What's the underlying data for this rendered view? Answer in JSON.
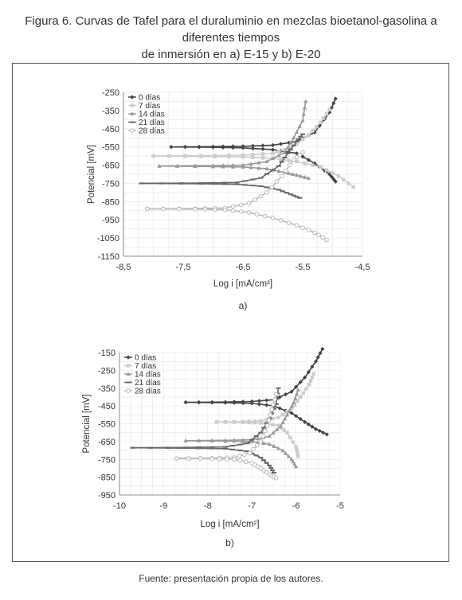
{
  "figure": {
    "title_line1": "Figura 6. Curvas de Tafel para el duraluminio en mezclas bioetanol-gasolina a diferentes tiempos",
    "title_line2": "de inmersión en a) E-15 y b) E-20",
    "source": "Fuente: presentación propia de los autores."
  },
  "chart_data": [
    {
      "type": "line",
      "label": "a)",
      "xlabel": "Log i [mA/cm²]",
      "ylabel": "Potencial [mV]",
      "xlim": [
        -8.5,
        -4.5
      ],
      "ylim": [
        -1150,
        -250
      ],
      "xticks": [
        "-8,5",
        "-7,5",
        "-6,5",
        "-5,5",
        "-4,5"
      ],
      "yticks": [
        "-250",
        "-350",
        "-450",
        "-550",
        "-650",
        "-750",
        "-850",
        "-950",
        "-1050",
        "-1150"
      ],
      "grid": true,
      "legend_position": "top-left",
      "series": [
        {
          "name": "0 días",
          "color": "#444444",
          "marker": "diamond",
          "points": [
            [
              -7.7,
              -550
            ],
            [
              -7.0,
              -548
            ],
            [
              -6.5,
              -546
            ],
            [
              -6.0,
              -540
            ],
            [
              -5.6,
              -520
            ],
            [
              -5.3,
              -470
            ],
            [
              -5.05,
              -360
            ],
            [
              -4.95,
              -285
            ]
          ],
          "cathodic": [
            [
              -7.7,
              -550
            ],
            [
              -7.0,
              -552
            ],
            [
              -6.5,
              -555
            ],
            [
              -6.0,
              -565
            ],
            [
              -5.6,
              -585
            ],
            [
              -5.3,
              -640
            ],
            [
              -5.05,
              -700
            ],
            [
              -4.95,
              -740
            ]
          ]
        },
        {
          "name": "7 días",
          "color": "#cccccc",
          "marker": "square",
          "points": [
            [
              -8.0,
              -600
            ],
            [
              -7.2,
              -598
            ],
            [
              -6.5,
              -595
            ],
            [
              -6.0,
              -585
            ],
            [
              -5.7,
              -555
            ],
            [
              -5.4,
              -485
            ],
            [
              -5.2,
              -415
            ],
            [
              -5.05,
              -345
            ]
          ],
          "cathodic": [
            [
              -8.0,
              -600
            ],
            [
              -7.2,
              -602
            ],
            [
              -6.5,
              -605
            ],
            [
              -6.0,
              -612
            ],
            [
              -5.6,
              -630
            ],
            [
              -5.2,
              -660
            ],
            [
              -4.9,
              -710
            ],
            [
              -4.65,
              -770
            ]
          ]
        },
        {
          "name": "14 días",
          "color": "#999999",
          "marker": "triangle",
          "points": [
            [
              -7.9,
              -655
            ],
            [
              -7.0,
              -652
            ],
            [
              -6.5,
              -650
            ],
            [
              -6.1,
              -630
            ],
            [
              -5.8,
              -580
            ],
            [
              -5.65,
              -500
            ],
            [
              -5.5,
              -405
            ],
            [
              -5.45,
              -300
            ]
          ],
          "cathodic": [
            [
              -7.9,
              -655
            ],
            [
              -7.0,
              -658
            ],
            [
              -6.5,
              -660
            ],
            [
              -6.1,
              -670
            ],
            [
              -5.8,
              -690
            ],
            [
              -5.6,
              -705
            ],
            [
              -5.4,
              -722
            ]
          ]
        },
        {
          "name": "21 días",
          "color": "#666666",
          "marker": "dash",
          "points": [
            [
              -8.2,
              -750
            ],
            [
              -7.2,
              -748
            ],
            [
              -6.6,
              -745
            ],
            [
              -6.2,
              -720
            ],
            [
              -5.9,
              -655
            ],
            [
              -5.75,
              -585
            ],
            [
              -5.6,
              -520
            ],
            [
              -5.5,
              -480
            ]
          ],
          "cathodic": [
            [
              -8.2,
              -750
            ],
            [
              -7.2,
              -752
            ],
            [
              -6.6,
              -755
            ],
            [
              -6.2,
              -765
            ],
            [
              -5.9,
              -785
            ],
            [
              -5.7,
              -810
            ],
            [
              -5.55,
              -830
            ]
          ]
        },
        {
          "name": "28 días",
          "color": "#bbbbbb",
          "marker": "circle",
          "points": [
            [
              -8.1,
              -890
            ],
            [
              -7.3,
              -888
            ],
            [
              -6.8,
              -885
            ],
            [
              -6.4,
              -860
            ],
            [
              -6.1,
              -800
            ],
            [
              -5.85,
              -710
            ],
            [
              -5.65,
              -620
            ],
            [
              -5.5,
              -580
            ]
          ],
          "cathodic": [
            [
              -8.1,
              -890
            ],
            [
              -7.3,
              -892
            ],
            [
              -6.8,
              -895
            ],
            [
              -6.4,
              -910
            ],
            [
              -6.0,
              -940
            ],
            [
              -5.6,
              -980
            ],
            [
              -5.3,
              -1020
            ],
            [
              -5.1,
              -1060
            ]
          ]
        }
      ]
    },
    {
      "type": "line",
      "label": "b)",
      "xlabel": "Log i [mA/cm²]",
      "ylabel": "Potencial [mV]",
      "xlim": [
        -10,
        -5
      ],
      "ylim": [
        -950,
        -150
      ],
      "xticks": [
        "-10",
        "-9",
        "-8",
        "-7",
        "-6",
        "-5"
      ],
      "yticks": [
        "-150",
        "-250",
        "-350",
        "-450",
        "-550",
        "-650",
        "-750",
        "-850",
        "-950"
      ],
      "grid": true,
      "legend_position": "top-left",
      "series": [
        {
          "name": "0 días",
          "color": "#444444",
          "marker": "diamond",
          "points": [
            [
              -8.5,
              -430
            ],
            [
              -7.6,
              -428
            ],
            [
              -7.0,
              -425
            ],
            [
              -6.5,
              -415
            ],
            [
              -6.1,
              -370
            ],
            [
              -5.8,
              -290
            ],
            [
              -5.55,
              -200
            ],
            [
              -5.4,
              -130
            ]
          ],
          "cathodic": [
            [
              -8.5,
              -430
            ],
            [
              -7.6,
              -432
            ],
            [
              -7.0,
              -435
            ],
            [
              -6.5,
              -450
            ],
            [
              -6.1,
              -490
            ],
            [
              -5.8,
              -540
            ],
            [
              -5.55,
              -580
            ],
            [
              -5.3,
              -610
            ]
          ]
        },
        {
          "name": "7 días",
          "color": "#cccccc",
          "marker": "square",
          "points": [
            [
              -7.8,
              -540
            ],
            [
              -7.2,
              -538
            ],
            [
              -6.8,
              -535
            ],
            [
              -6.4,
              -515
            ],
            [
              -6.1,
              -465
            ],
            [
              -5.9,
              -400
            ],
            [
              -5.7,
              -330
            ],
            [
              -5.6,
              -270
            ]
          ],
          "cathodic": [
            [
              -7.8,
              -540
            ],
            [
              -7.2,
              -542
            ],
            [
              -6.8,
              -545
            ],
            [
              -6.4,
              -560
            ],
            [
              -6.2,
              -600
            ],
            [
              -6.0,
              -680
            ],
            [
              -5.95,
              -735
            ]
          ]
        },
        {
          "name": "14 días",
          "color": "#999999",
          "marker": "triangle",
          "points": [
            [
              -8.5,
              -645
            ],
            [
              -7.6,
              -643
            ],
            [
              -7.0,
              -640
            ],
            [
              -6.6,
              -620
            ],
            [
              -6.35,
              -565
            ],
            [
              -6.2,
              -500
            ],
            [
              -6.05,
              -430
            ],
            [
              -5.95,
              -360
            ]
          ],
          "cathodic": [
            [
              -8.5,
              -645
            ],
            [
              -7.6,
              -647
            ],
            [
              -7.0,
              -650
            ],
            [
              -6.6,
              -665
            ],
            [
              -6.3,
              -700
            ],
            [
              -6.1,
              -750
            ],
            [
              -6.0,
              -790
            ]
          ]
        },
        {
          "name": "21 días",
          "color": "#666666",
          "marker": "dash",
          "points": [
            [
              -9.7,
              -685
            ],
            [
              -8.5,
              -683
            ],
            [
              -7.6,
              -680
            ],
            [
              -7.1,
              -660
            ],
            [
              -6.8,
              -600
            ],
            [
              -6.6,
              -520
            ],
            [
              -6.45,
              -440
            ],
            [
              -6.4,
              -350
            ]
          ],
          "cathodic": [
            [
              -9.7,
              -685
            ],
            [
              -8.5,
              -687
            ],
            [
              -7.6,
              -690
            ],
            [
              -7.1,
              -705
            ],
            [
              -6.8,
              -740
            ],
            [
              -6.6,
              -785
            ],
            [
              -6.5,
              -825
            ]
          ]
        },
        {
          "name": "28 días",
          "color": "#bbbbbb",
          "marker": "circle",
          "points": [
            [
              -8.7,
              -745
            ],
            [
              -7.9,
              -743
            ],
            [
              -7.4,
              -740
            ],
            [
              -7.05,
              -715
            ],
            [
              -6.8,
              -650
            ],
            [
              -6.65,
              -560
            ],
            [
              -6.55,
              -470
            ],
            [
              -6.45,
              -385
            ]
          ],
          "cathodic": [
            [
              -8.7,
              -745
            ],
            [
              -7.9,
              -747
            ],
            [
              -7.4,
              -750
            ],
            [
              -7.0,
              -770
            ],
            [
              -6.8,
              -800
            ],
            [
              -6.6,
              -835
            ],
            [
              -6.45,
              -855
            ]
          ]
        }
      ]
    }
  ]
}
